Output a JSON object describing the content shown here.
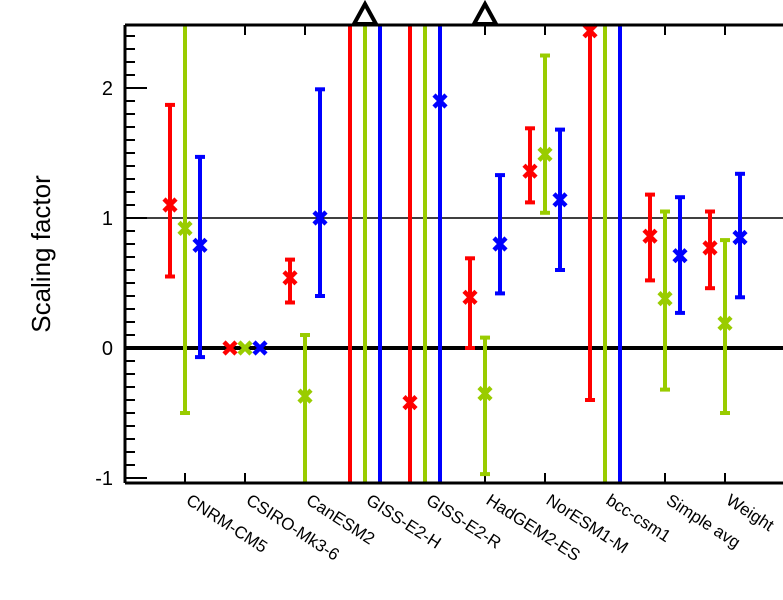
{
  "chart_data": {
    "type": "errorbar",
    "title": "",
    "xlabel": "",
    "ylabel": "Scaling factor",
    "ylim": [
      -1.04,
      2.48
    ],
    "yticks": [
      -1,
      0,
      1,
      2
    ],
    "reference_lines": [
      0,
      1
    ],
    "grid": false,
    "categories": [
      "CNRM-CM5",
      "CSIRO-Mk3-6",
      "CanESM2",
      "GISS-E2-H",
      "GISS-E2-R",
      "HadGEM2-ES",
      "NorESM1-M",
      "bcc-csm1",
      "Simple avg",
      "Weight"
    ],
    "off_scale_markers": [
      {
        "category": "GISS-E2-H",
        "series": 1,
        "direction": "above"
      },
      {
        "category": "HadGEM2-ES",
        "series": 1,
        "direction": "above"
      }
    ],
    "series": [
      {
        "color": "#ff0000",
        "values": [
          1.1,
          0,
          0.54,
          null,
          -0.42,
          0.39,
          1.36,
          2.44,
          0.86,
          0.77
        ],
        "lo": [
          0.55,
          null,
          0.35,
          -1.04,
          -1.04,
          0.0,
          1.12,
          -0.4,
          0.52,
          0.46
        ],
        "hi": [
          1.87,
          null,
          0.68,
          2.48,
          2.48,
          0.69,
          1.69,
          2.48,
          1.18,
          1.05
        ]
      },
      {
        "color": "#99cc00",
        "values": [
          0.92,
          0,
          -0.37,
          null,
          null,
          -0.35,
          1.49,
          null,
          0.38,
          0.19
        ],
        "lo": [
          -0.5,
          null,
          -1.04,
          -1.04,
          -1.04,
          -0.97,
          1.04,
          -1.04,
          -0.32,
          -0.5
        ],
        "hi": [
          2.48,
          null,
          0.1,
          2.48,
          2.48,
          0.08,
          2.25,
          2.48,
          1.05,
          0.83
        ]
      },
      {
        "color": "#0000ff",
        "values": [
          0.79,
          0,
          1.0,
          null,
          1.9,
          0.8,
          1.14,
          null,
          0.71,
          0.85
        ],
        "lo": [
          -0.07,
          null,
          0.4,
          -1.04,
          -1.04,
          0.42,
          0.6,
          -1.04,
          0.27,
          0.39
        ],
        "hi": [
          1.47,
          null,
          1.99,
          2.48,
          2.48,
          1.33,
          1.68,
          2.48,
          1.16,
          1.34
        ]
      }
    ]
  }
}
